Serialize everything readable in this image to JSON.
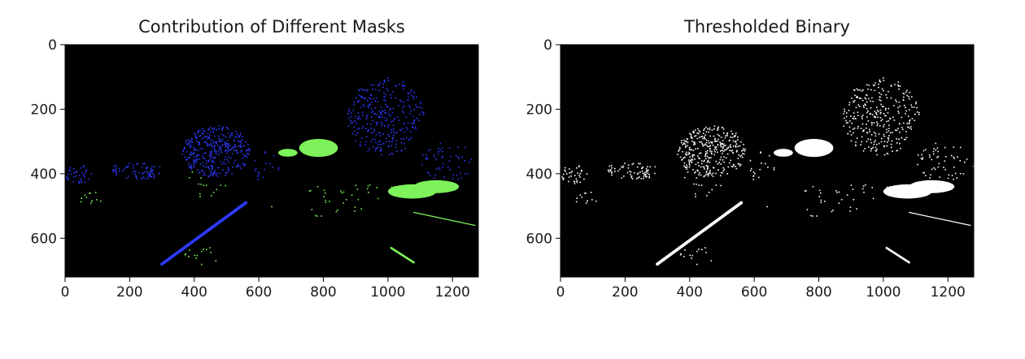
{
  "chart_data": [
    {
      "type": "image",
      "title": "Contribution of Different Masks",
      "xlabel": "",
      "ylabel": "",
      "xlim": [
        0,
        1280
      ],
      "ylim": [
        720,
        0
      ],
      "xticks": [
        0,
        200,
        400,
        600,
        800,
        1000,
        1200
      ],
      "yticks": [
        0,
        200,
        400,
        600
      ],
      "background": "#000000",
      "colors": {
        "mask_a": "#2d3aff",
        "mask_b": "#7df25a"
      },
      "regions": [
        {
          "kind": "line",
          "color": "mask_a",
          "x1": 300,
          "y1": 680,
          "x2": 560,
          "y2": 490,
          "width": 6
        },
        {
          "kind": "cluster",
          "color": "mask_a",
          "cx": 470,
          "cy": 330,
          "rx": 110,
          "ry": 80,
          "n": 340
        },
        {
          "kind": "cluster",
          "color": "mask_a",
          "cx": 990,
          "cy": 220,
          "rx": 120,
          "ry": 120,
          "n": 300
        },
        {
          "kind": "cluster",
          "color": "mask_a",
          "cx": 220,
          "cy": 390,
          "rx": 90,
          "ry": 25,
          "n": 70
        },
        {
          "kind": "cluster",
          "color": "mask_a",
          "cx": 40,
          "cy": 400,
          "rx": 40,
          "ry": 30,
          "n": 35
        },
        {
          "kind": "cluster",
          "color": "mask_a",
          "cx": 1190,
          "cy": 360,
          "rx": 90,
          "ry": 60,
          "n": 55
        },
        {
          "kind": "cluster",
          "color": "mask_a",
          "cx": 620,
          "cy": 380,
          "rx": 40,
          "ry": 50,
          "n": 18
        },
        {
          "kind": "blob",
          "color": "mask_b",
          "cx": 785,
          "cy": 320,
          "rx": 60,
          "ry": 28
        },
        {
          "kind": "blob",
          "color": "mask_b",
          "cx": 1075,
          "cy": 455,
          "rx": 75,
          "ry": 22
        },
        {
          "kind": "blob",
          "color": "mask_b",
          "cx": 1150,
          "cy": 440,
          "rx": 70,
          "ry": 20
        },
        {
          "kind": "blob",
          "color": "mask_b",
          "cx": 690,
          "cy": 335,
          "rx": 30,
          "ry": 12
        },
        {
          "kind": "line",
          "color": "mask_b",
          "x1": 1010,
          "y1": 630,
          "x2": 1080,
          "y2": 675,
          "width": 4
        },
        {
          "kind": "line",
          "color": "mask_b",
          "x1": 1080,
          "y1": 520,
          "x2": 1270,
          "y2": 560,
          "width": 2
        },
        {
          "kind": "cluster",
          "color": "mask_b",
          "cx": 420,
          "cy": 650,
          "rx": 60,
          "ry": 30,
          "n": 14
        },
        {
          "kind": "cluster",
          "color": "mask_b",
          "cx": 900,
          "cy": 450,
          "rx": 180,
          "ry": 30,
          "n": 30
        },
        {
          "kind": "cluster",
          "color": "mask_b",
          "cx": 80,
          "cy": 470,
          "rx": 70,
          "ry": 20,
          "n": 12
        },
        {
          "kind": "cluster",
          "color": "mask_b",
          "cx": 420,
          "cy": 430,
          "rx": 80,
          "ry": 40,
          "n": 14
        },
        {
          "kind": "cluster",
          "color": "mask_b",
          "cx": 780,
          "cy": 500,
          "rx": 150,
          "ry": 30,
          "n": 14
        }
      ]
    },
    {
      "type": "image",
      "title": "Thresholded Binary",
      "xlabel": "",
      "ylabel": "",
      "xlim": [
        0,
        1280
      ],
      "ylim": [
        720,
        0
      ],
      "xticks": [
        0,
        200,
        400,
        600,
        800,
        1000,
        1200
      ],
      "yticks": [
        0,
        200,
        400,
        600
      ],
      "background": "#000000",
      "colors": {
        "mask_a": "#ffffff",
        "mask_b": "#ffffff"
      },
      "regions": [
        {
          "kind": "line",
          "color": "mask_a",
          "x1": 300,
          "y1": 680,
          "x2": 560,
          "y2": 490,
          "width": 6
        },
        {
          "kind": "cluster",
          "color": "mask_a",
          "cx": 470,
          "cy": 330,
          "rx": 110,
          "ry": 80,
          "n": 340
        },
        {
          "kind": "cluster",
          "color": "mask_a",
          "cx": 990,
          "cy": 220,
          "rx": 120,
          "ry": 120,
          "n": 300
        },
        {
          "kind": "cluster",
          "color": "mask_a",
          "cx": 220,
          "cy": 390,
          "rx": 90,
          "ry": 25,
          "n": 70
        },
        {
          "kind": "cluster",
          "color": "mask_a",
          "cx": 40,
          "cy": 400,
          "rx": 40,
          "ry": 30,
          "n": 35
        },
        {
          "kind": "cluster",
          "color": "mask_a",
          "cx": 1190,
          "cy": 360,
          "rx": 90,
          "ry": 60,
          "n": 55
        },
        {
          "kind": "cluster",
          "color": "mask_a",
          "cx": 620,
          "cy": 380,
          "rx": 40,
          "ry": 50,
          "n": 18
        },
        {
          "kind": "blob",
          "color": "mask_b",
          "cx": 785,
          "cy": 320,
          "rx": 60,
          "ry": 28
        },
        {
          "kind": "blob",
          "color": "mask_b",
          "cx": 1075,
          "cy": 455,
          "rx": 75,
          "ry": 22
        },
        {
          "kind": "blob",
          "color": "mask_b",
          "cx": 1150,
          "cy": 440,
          "rx": 70,
          "ry": 20
        },
        {
          "kind": "blob",
          "color": "mask_b",
          "cx": 690,
          "cy": 335,
          "rx": 30,
          "ry": 12
        },
        {
          "kind": "line",
          "color": "mask_b",
          "x1": 1010,
          "y1": 630,
          "x2": 1080,
          "y2": 675,
          "width": 4
        },
        {
          "kind": "line",
          "color": "mask_b",
          "x1": 1080,
          "y1": 520,
          "x2": 1270,
          "y2": 560,
          "width": 2
        },
        {
          "kind": "cluster",
          "color": "mask_b",
          "cx": 420,
          "cy": 650,
          "rx": 60,
          "ry": 30,
          "n": 14
        },
        {
          "kind": "cluster",
          "color": "mask_b",
          "cx": 900,
          "cy": 450,
          "rx": 180,
          "ry": 30,
          "n": 30
        },
        {
          "kind": "cluster",
          "color": "mask_b",
          "cx": 80,
          "cy": 470,
          "rx": 70,
          "ry": 20,
          "n": 12
        },
        {
          "kind": "cluster",
          "color": "mask_b",
          "cx": 420,
          "cy": 430,
          "rx": 80,
          "ry": 40,
          "n": 14
        },
        {
          "kind": "cluster",
          "color": "mask_b",
          "cx": 780,
          "cy": 500,
          "rx": 150,
          "ry": 30,
          "n": 14
        }
      ]
    }
  ]
}
